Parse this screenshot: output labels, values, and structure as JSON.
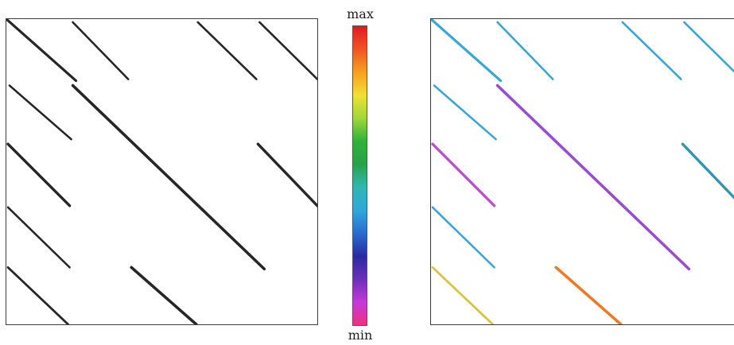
{
  "colorbar": {
    "max_label": "max",
    "min_label": "min",
    "gradient": [
      "#f0307e",
      "#c43ad8",
      "#6a2fb8",
      "#2a2aa0",
      "#2a6cd0",
      "#30a8d8",
      "#2fb8b0",
      "#28a24a",
      "#2fb23a",
      "#a0d838",
      "#f0e036",
      "#f6a020",
      "#f05524",
      "#e01a22"
    ]
  },
  "line_color_plain": "#262626",
  "line_colors": {
    "cyan": "#38a6d6",
    "purple": "#9a4cce",
    "magenta": "#c24ccf",
    "teal": "#2e96b2",
    "orange": "#f07a24",
    "yellow": "#d8c43c"
  }
}
